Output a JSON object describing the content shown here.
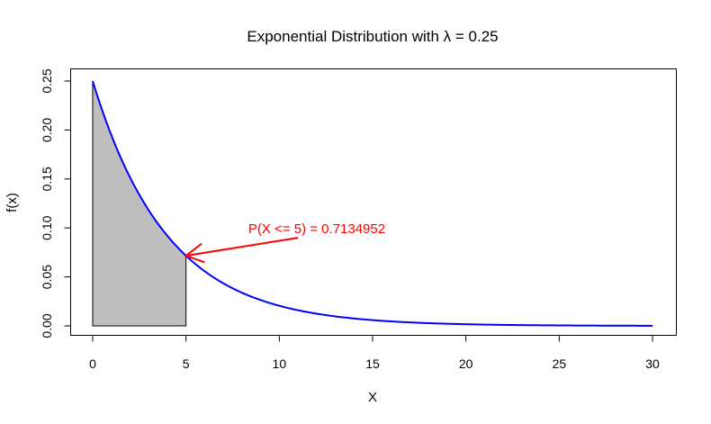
{
  "chart_data": {
    "type": "area",
    "title": "Exponential Distribution with λ = 0.25",
    "xlabel": "X",
    "ylabel": "f(x)",
    "xlim": [
      0,
      30
    ],
    "ylim": [
      0,
      0.25
    ],
    "x_ticks": [
      "0",
      "5",
      "10",
      "15",
      "20",
      "25",
      "30"
    ],
    "y_ticks": [
      "0.00",
      "0.05",
      "0.10",
      "0.15",
      "0.20",
      "0.25"
    ],
    "grid": false,
    "legend": "none",
    "series": [
      {
        "rate": 0.25,
        "x": [
          0,
          1,
          2,
          3,
          4,
          5,
          6,
          7,
          8,
          9,
          10,
          11,
          12,
          13,
          14,
          15,
          16,
          17,
          18,
          19,
          20,
          21,
          22,
          23,
          24,
          25,
          26,
          27,
          28,
          29,
          30
        ],
        "y": [
          0.25,
          0.1947,
          0.1516,
          0.1181,
          0.092,
          0.0716,
          0.0558,
          0.0434,
          0.0338,
          0.0263,
          0.0205,
          0.016,
          0.0124,
          0.0097,
          0.0075,
          0.0059,
          0.0046,
          0.0036,
          0.0028,
          0.0022,
          0.0017,
          0.0013,
          0.001,
          0.0008,
          0.0006,
          0.0005,
          0.0004,
          0.0003,
          0.0002,
          0.0002,
          0.0001
        ],
        "color": "#0000ff"
      }
    ],
    "shaded_region": {
      "x_from": 0,
      "x_to": 5,
      "fill": "#bebebe",
      "stroke": "#000000"
    },
    "annotation": {
      "text": "P(X <= 5) = 0.7134952",
      "color": "#ff0000",
      "arrow_from": [
        11,
        0.09
      ],
      "arrow_to": [
        5,
        0.0716
      ]
    }
  }
}
